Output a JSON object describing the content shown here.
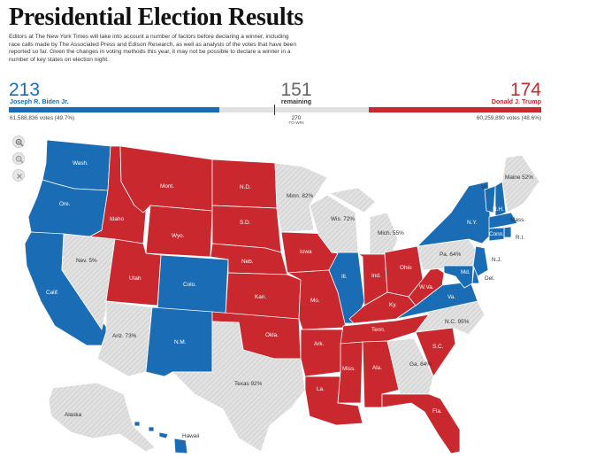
{
  "header": {
    "title": "Presidential Election Results",
    "intro": "Editors at The New York Times will take into account a number of factors before declaring a winner, including race calls made by The Associated Press and Edison Research, as well as analysis of the votes that have been reported so far. Given the changes in voting methods this year, it may not be possible to declare a winner in a number of key states on election night."
  },
  "tally": {
    "dem": {
      "ev": "213",
      "name": "Joseph R. Biden Jr.",
      "votes": "61,588,836 votes (49.7%)",
      "color": "#1a6db5"
    },
    "remaining": {
      "ev": "151",
      "label": "remaining"
    },
    "rep": {
      "ev": "174",
      "name": "Donald J. Trump",
      "votes": "60,259,890 votes (48.6%)",
      "color": "#c8282e"
    },
    "to_win": "270",
    "to_win_label": "TO WIN",
    "total_ev": 538
  },
  "map_controls": {
    "zoom_in_icon": "zoom-in-icon",
    "zoom_out_icon": "zoom-out-icon",
    "reset_icon": "close-icon"
  },
  "colors": {
    "dem": "#1a6db5",
    "rep": "#c8282e",
    "uncalled": "#d9d9d9",
    "hatch": "#f2f2f2"
  },
  "states": [
    {
      "id": "wa",
      "label": "Wash.",
      "result": "dem"
    },
    {
      "id": "or",
      "label": "Ore.",
      "result": "dem"
    },
    {
      "id": "ca",
      "label": "Calif.",
      "result": "dem"
    },
    {
      "id": "id",
      "label": "Idaho",
      "result": "rep"
    },
    {
      "id": "mt",
      "label": "Mont.",
      "result": "rep"
    },
    {
      "id": "wy",
      "label": "Wyo.",
      "result": "rep"
    },
    {
      "id": "nv",
      "label": "Nev. 5%",
      "result": "uncalled"
    },
    {
      "id": "ut",
      "label": "Utah",
      "result": "rep"
    },
    {
      "id": "co",
      "label": "Colo.",
      "result": "dem"
    },
    {
      "id": "az",
      "label": "Ariz. 73%",
      "result": "uncalled"
    },
    {
      "id": "nm",
      "label": "N.M.",
      "result": "dem"
    },
    {
      "id": "nd",
      "label": "N.D.",
      "result": "rep"
    },
    {
      "id": "sd",
      "label": "S.D.",
      "result": "rep"
    },
    {
      "id": "ne",
      "label": "Neb.",
      "result": "rep"
    },
    {
      "id": "ks",
      "label": "Kan.",
      "result": "rep"
    },
    {
      "id": "ok",
      "label": "Okla.",
      "result": "rep"
    },
    {
      "id": "tx",
      "label": "Texas 92%",
      "result": "uncalled"
    },
    {
      "id": "mn",
      "label": "Minn. 82%",
      "result": "uncalled"
    },
    {
      "id": "ia",
      "label": "Iowa",
      "result": "rep"
    },
    {
      "id": "mo",
      "label": "Mo.",
      "result": "rep"
    },
    {
      "id": "ar",
      "label": "Ark.",
      "result": "rep"
    },
    {
      "id": "la",
      "label": "La.",
      "result": "rep"
    },
    {
      "id": "wi",
      "label": "Wis. 72%",
      "result": "uncalled"
    },
    {
      "id": "il",
      "label": "Ill.",
      "result": "dem"
    },
    {
      "id": "mi",
      "label": "Mich. 55%",
      "result": "uncalled"
    },
    {
      "id": "in",
      "label": "Ind.",
      "result": "rep"
    },
    {
      "id": "oh",
      "label": "Ohio",
      "result": "rep"
    },
    {
      "id": "ky",
      "label": "Ky.",
      "result": "rep"
    },
    {
      "id": "tn",
      "label": "Tenn.",
      "result": "rep"
    },
    {
      "id": "ms",
      "label": "Miss.",
      "result": "rep"
    },
    {
      "id": "al",
      "label": "Ala.",
      "result": "rep"
    },
    {
      "id": "ga",
      "label": "Ga. 84%",
      "result": "uncalled"
    },
    {
      "id": "fl",
      "label": "Fla.",
      "result": "rep"
    },
    {
      "id": "sc",
      "label": "S.C.",
      "result": "rep"
    },
    {
      "id": "nc",
      "label": "N.C. 95%",
      "result": "uncalled"
    },
    {
      "id": "va",
      "label": "Va.",
      "result": "dem"
    },
    {
      "id": "wv",
      "label": "W.Va.",
      "result": "rep"
    },
    {
      "id": "pa",
      "label": "Pa. 64%",
      "result": "uncalled"
    },
    {
      "id": "ny",
      "label": "N.Y.",
      "result": "dem"
    },
    {
      "id": "vt",
      "label": "Vt.",
      "result": "dem"
    },
    {
      "id": "nh",
      "label": "N.H.",
      "result": "dem"
    },
    {
      "id": "me",
      "label": "Maine 52%",
      "result": "uncalled"
    },
    {
      "id": "ma",
      "label": "Mass.",
      "result": "dem"
    },
    {
      "id": "ri",
      "label": "R.I.",
      "result": "dem"
    },
    {
      "id": "ct",
      "label": "Conn.",
      "result": "dem"
    },
    {
      "id": "nj",
      "label": "N.J.",
      "result": "dem"
    },
    {
      "id": "de",
      "label": "Del.",
      "result": "dem"
    },
    {
      "id": "md",
      "label": "Md.",
      "result": "dem"
    },
    {
      "id": "ak",
      "label": "Alaska",
      "result": "uncalled"
    },
    {
      "id": "hi",
      "label": "Hawaii",
      "result": "dem"
    }
  ]
}
